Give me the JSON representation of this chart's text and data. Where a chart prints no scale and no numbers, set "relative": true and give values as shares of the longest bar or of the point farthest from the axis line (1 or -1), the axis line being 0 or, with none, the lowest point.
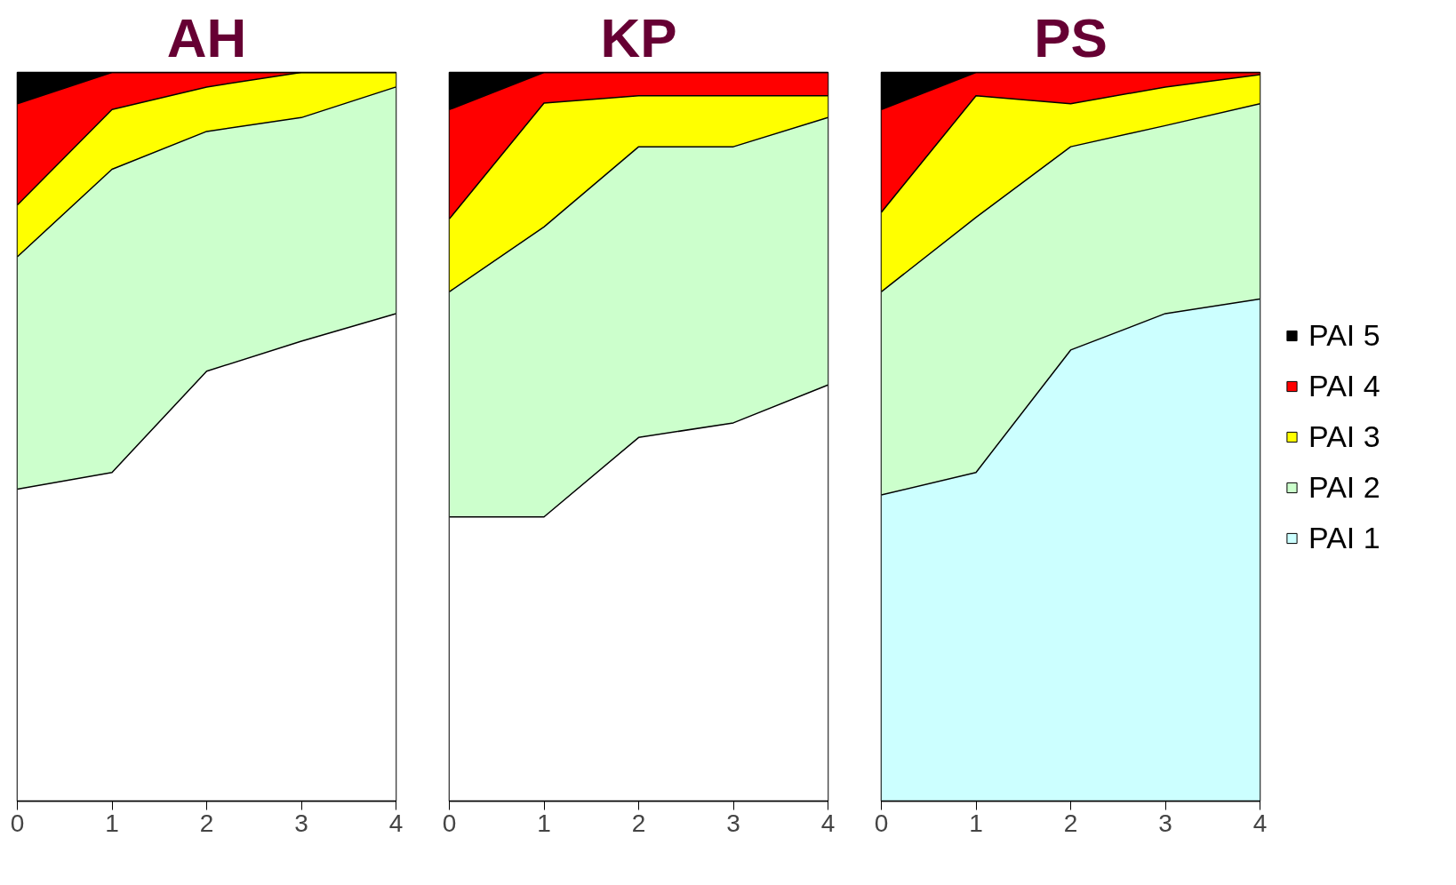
{
  "chart_data": [
    {
      "type": "area",
      "title": "AH",
      "stacked": true,
      "relative": true,
      "x": [
        0,
        1,
        2,
        3,
        4
      ],
      "xlim": [
        0,
        4
      ],
      "xticks": [
        0,
        1,
        2,
        3,
        4
      ],
      "tick_labels": "x",
      "grid": false,
      "legend": false,
      "series": [
        {
          "color": "#ffffff",
          "values": [
            0.428,
            0.451,
            0.59,
            0.631,
            0.669
          ]
        },
        {
          "color": "#ccffcc",
          "values": [
            0.319,
            0.416,
            0.329,
            0.307,
            0.311
          ]
        },
        {
          "color": "#ffff00",
          "values": [
            0.071,
            0.082,
            0.061,
            0.062,
            0.02
          ]
        },
        {
          "color": "#ff0000",
          "values": [
            0.139,
            0.051,
            0.02,
            0,
            0
          ]
        },
        {
          "color": "#000000",
          "values": [
            0.043,
            0,
            0,
            0,
            0
          ]
        }
      ]
    },
    {
      "type": "area",
      "title": "KP",
      "stacked": true,
      "relative": true,
      "x": [
        0,
        1,
        2,
        3,
        4
      ],
      "xlim": [
        0,
        4
      ],
      "xticks": [
        0,
        1,
        2,
        3,
        4
      ],
      "tick_labels": "x",
      "grid": false,
      "legend": false,
      "series": [
        {
          "color": "#ffffff",
          "values": [
            0.39,
            0.39,
            0.499,
            0.519,
            0.571
          ]
        },
        {
          "color": "#ccffcc",
          "values": [
            0.309,
            0.398,
            0.399,
            0.379,
            0.367
          ]
        },
        {
          "color": "#ffff00",
          "values": [
            0.1,
            0.17,
            0.07,
            0.07,
            0.03
          ]
        },
        {
          "color": "#ff0000",
          "values": [
            0.15,
            0.042,
            0.032,
            0.032,
            0.032
          ]
        },
        {
          "color": "#000000",
          "values": [
            0.051,
            0,
            0,
            0,
            0
          ]
        }
      ]
    },
    {
      "type": "area",
      "title": "PS",
      "stacked": true,
      "relative": true,
      "x": [
        0,
        1,
        2,
        3,
        4
      ],
      "xlim": [
        0,
        4
      ],
      "xticks": [
        0,
        1,
        2,
        3,
        4
      ],
      "tick_labels": "x",
      "grid": false,
      "legend": "right",
      "series": [
        {
          "name": "PAI 1",
          "color": "#ccffff",
          "values": [
            0.42,
            0.451,
            0.619,
            0.669,
            0.689
          ]
        },
        {
          "name": "PAI 2",
          "color": "#ccffcc",
          "values": [
            0.279,
            0.35,
            0.279,
            0.258,
            0.268
          ]
        },
        {
          "name": "PAI 3",
          "color": "#ffff00",
          "values": [
            0.109,
            0.167,
            0.059,
            0.053,
            0.04
          ]
        },
        {
          "name": "PAI 4",
          "color": "#ff0000",
          "values": [
            0.141,
            0.032,
            0.043,
            0.02,
            0.003
          ]
        },
        {
          "name": "PAI 5",
          "color": "#000000",
          "values": [
            0.051,
            0,
            0,
            0,
            0
          ]
        }
      ]
    }
  ]
}
